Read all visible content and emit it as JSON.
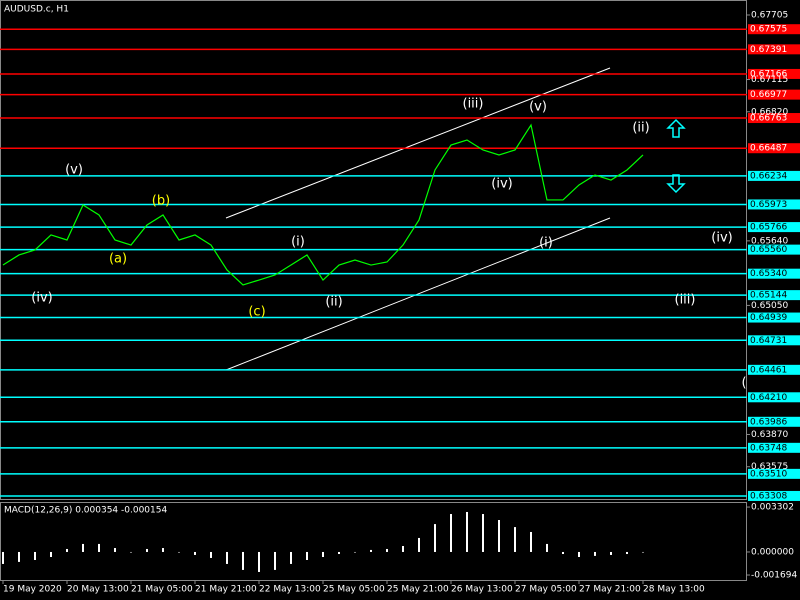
{
  "chart_data": [
    {
      "type": "line",
      "title": "AUDUSD.c, H1",
      "categories": [
        "19 May 2020",
        null,
        null,
        null,
        "20 May 13:00",
        null,
        null,
        null,
        "21 May 05:00",
        null,
        null,
        null,
        "21 May 21:00",
        null,
        null,
        null,
        "22 May 13:00",
        null,
        null,
        null,
        "25 May 05:00",
        null,
        null,
        null,
        "25 May 21:00",
        null,
        null,
        null,
        "26 May 13:00",
        null,
        null,
        null,
        "27 May 05:00",
        null,
        null,
        null,
        "27 May 21:00",
        null,
        null,
        null,
        "28 May 13:00"
      ],
      "series": [
        {
          "color": "#00ff00",
          "values": [
            0.65419,
            0.65511,
            0.65557,
            0.65694,
            0.65648,
            0.65968,
            0.65877,
            0.65648,
            0.65602,
            0.65785,
            0.65877,
            0.65648,
            0.65694,
            0.65602,
            0.65374,
            0.65237,
            0.65282,
            0.65328,
            0.65419,
            0.65511,
            0.65282,
            0.65419,
            0.65465,
            0.65419,
            0.65447,
            0.65602,
            0.65831,
            0.66288,
            0.66516,
            0.66562,
            0.66471,
            0.66425,
            0.66471,
            0.66699,
            0.66014,
            0.66014,
            0.66151,
            0.66242,
            0.66196,
            0.66288,
            0.66425
          ]
        }
      ],
      "ylim": [
        0.63271,
        0.67842
      ],
      "yticks": [
        0.67705,
        0.67115,
        {
          "value": 0.6682,
          "label": "0.66820"
        },
        {
          "value": 0.6564,
          "label": "0.65640"
        },
        {
          "value": 0.6505,
          "label": "0.65050"
        },
        {
          "value": 0.6387,
          "label": "0.63870"
        },
        0.63575
      ],
      "levels": [
        {
          "value": 0.67575,
          "color": "#ff0000"
        },
        {
          "value": 0.67391,
          "color": "#ff0000"
        },
        {
          "value": 0.67166,
          "color": "#ff0000"
        },
        {
          "value": 0.66977,
          "color": "#ff0000"
        },
        {
          "value": 0.66763,
          "color": "#ff0000"
        },
        {
          "value": 0.66487,
          "color": "#ff0000"
        },
        {
          "value": 0.66234,
          "color": "#00ffff"
        },
        {
          "value": 0.65973,
          "color": "#00ffff"
        },
        {
          "value": 0.65766,
          "color": "#00ffff"
        },
        {
          "value": 0.6556,
          "label": "0.65560",
          "color": "#00ffff"
        },
        {
          "value": 0.6534,
          "label": "0.65340",
          "color": "#00ffff"
        },
        {
          "value": 0.65144,
          "color": "#00ffff"
        },
        {
          "value": 0.64939,
          "color": "#00ffff"
        },
        {
          "value": 0.64731,
          "color": "#00ffff"
        },
        {
          "value": 0.64461,
          "color": "#00ffff"
        },
        {
          "value": 0.6421,
          "label": "0.64210",
          "color": "#00ffff"
        },
        {
          "value": 0.63986,
          "color": "#00ffff"
        },
        {
          "value": 0.63748,
          "color": "#00ffff"
        },
        {
          "value": 0.6351,
          "label": "0.63510",
          "color": "#00ffff"
        },
        {
          "value": 0.63308,
          "color": "#00ffff"
        }
      ],
      "annotations": [
        {
          "text": "(iv)",
          "color": "#ffffff"
        },
        {
          "text": "(v)",
          "color": "#ffffff"
        },
        {
          "text": "(a)",
          "color": "#ffff00"
        },
        {
          "text": "(b)",
          "color": "#ffff00"
        },
        {
          "text": "(c)",
          "color": "#ffff00"
        },
        {
          "text": "(i)",
          "color": "#ffffff"
        },
        {
          "text": "(ii)",
          "color": "#ffffff"
        },
        {
          "text": "(iii)",
          "color": "#ffffff"
        },
        {
          "text": "(iv)",
          "color": "#ffffff"
        },
        {
          "text": "(v)",
          "color": "#ffffff"
        },
        {
          "text": "(i)",
          "color": "#ffffff"
        },
        {
          "text": "(ii)",
          "color": "#ffffff"
        },
        {
          "text": "(iv)",
          "color": "#ffffff"
        },
        {
          "text": "(iii)",
          "color": "#ffffff"
        },
        {
          "text": "(",
          "color": "#ffffff"
        }
      ]
    },
    {
      "type": "bar",
      "title": "MACD(12,26,9) 0.000354 -0.000154",
      "color": "#ffffff",
      "values": [
        -0.00088,
        -0.00073,
        -0.00059,
        -0.00037,
        0.00022,
        0.00059,
        0.00059,
        0.00029,
        0,
        0.00022,
        0.00029,
        0,
        -0.00022,
        -0.00044,
        -0.00088,
        -0.00132,
        -0.00147,
        -0.00132,
        -0.00088,
        -0.00059,
        -0.00037,
        -0.00015,
        0,
        0.00015,
        0.00022,
        0.00044,
        0.00103,
        0.00205,
        0.00279,
        0.00294,
        0.00279,
        0.00235,
        0.00183,
        0.00147,
        0.00059,
        -0.00015,
        -0.00037,
        -0.00029,
        -0.00022,
        -0.00015,
        0
      ],
      "ylim": [
        -0.00206,
        0.0036
      ],
      "yticks": [
        0.003302,
        {
          "value": 0,
          "label": "0.000000"
        },
        -0.001694
      ]
    }
  ]
}
